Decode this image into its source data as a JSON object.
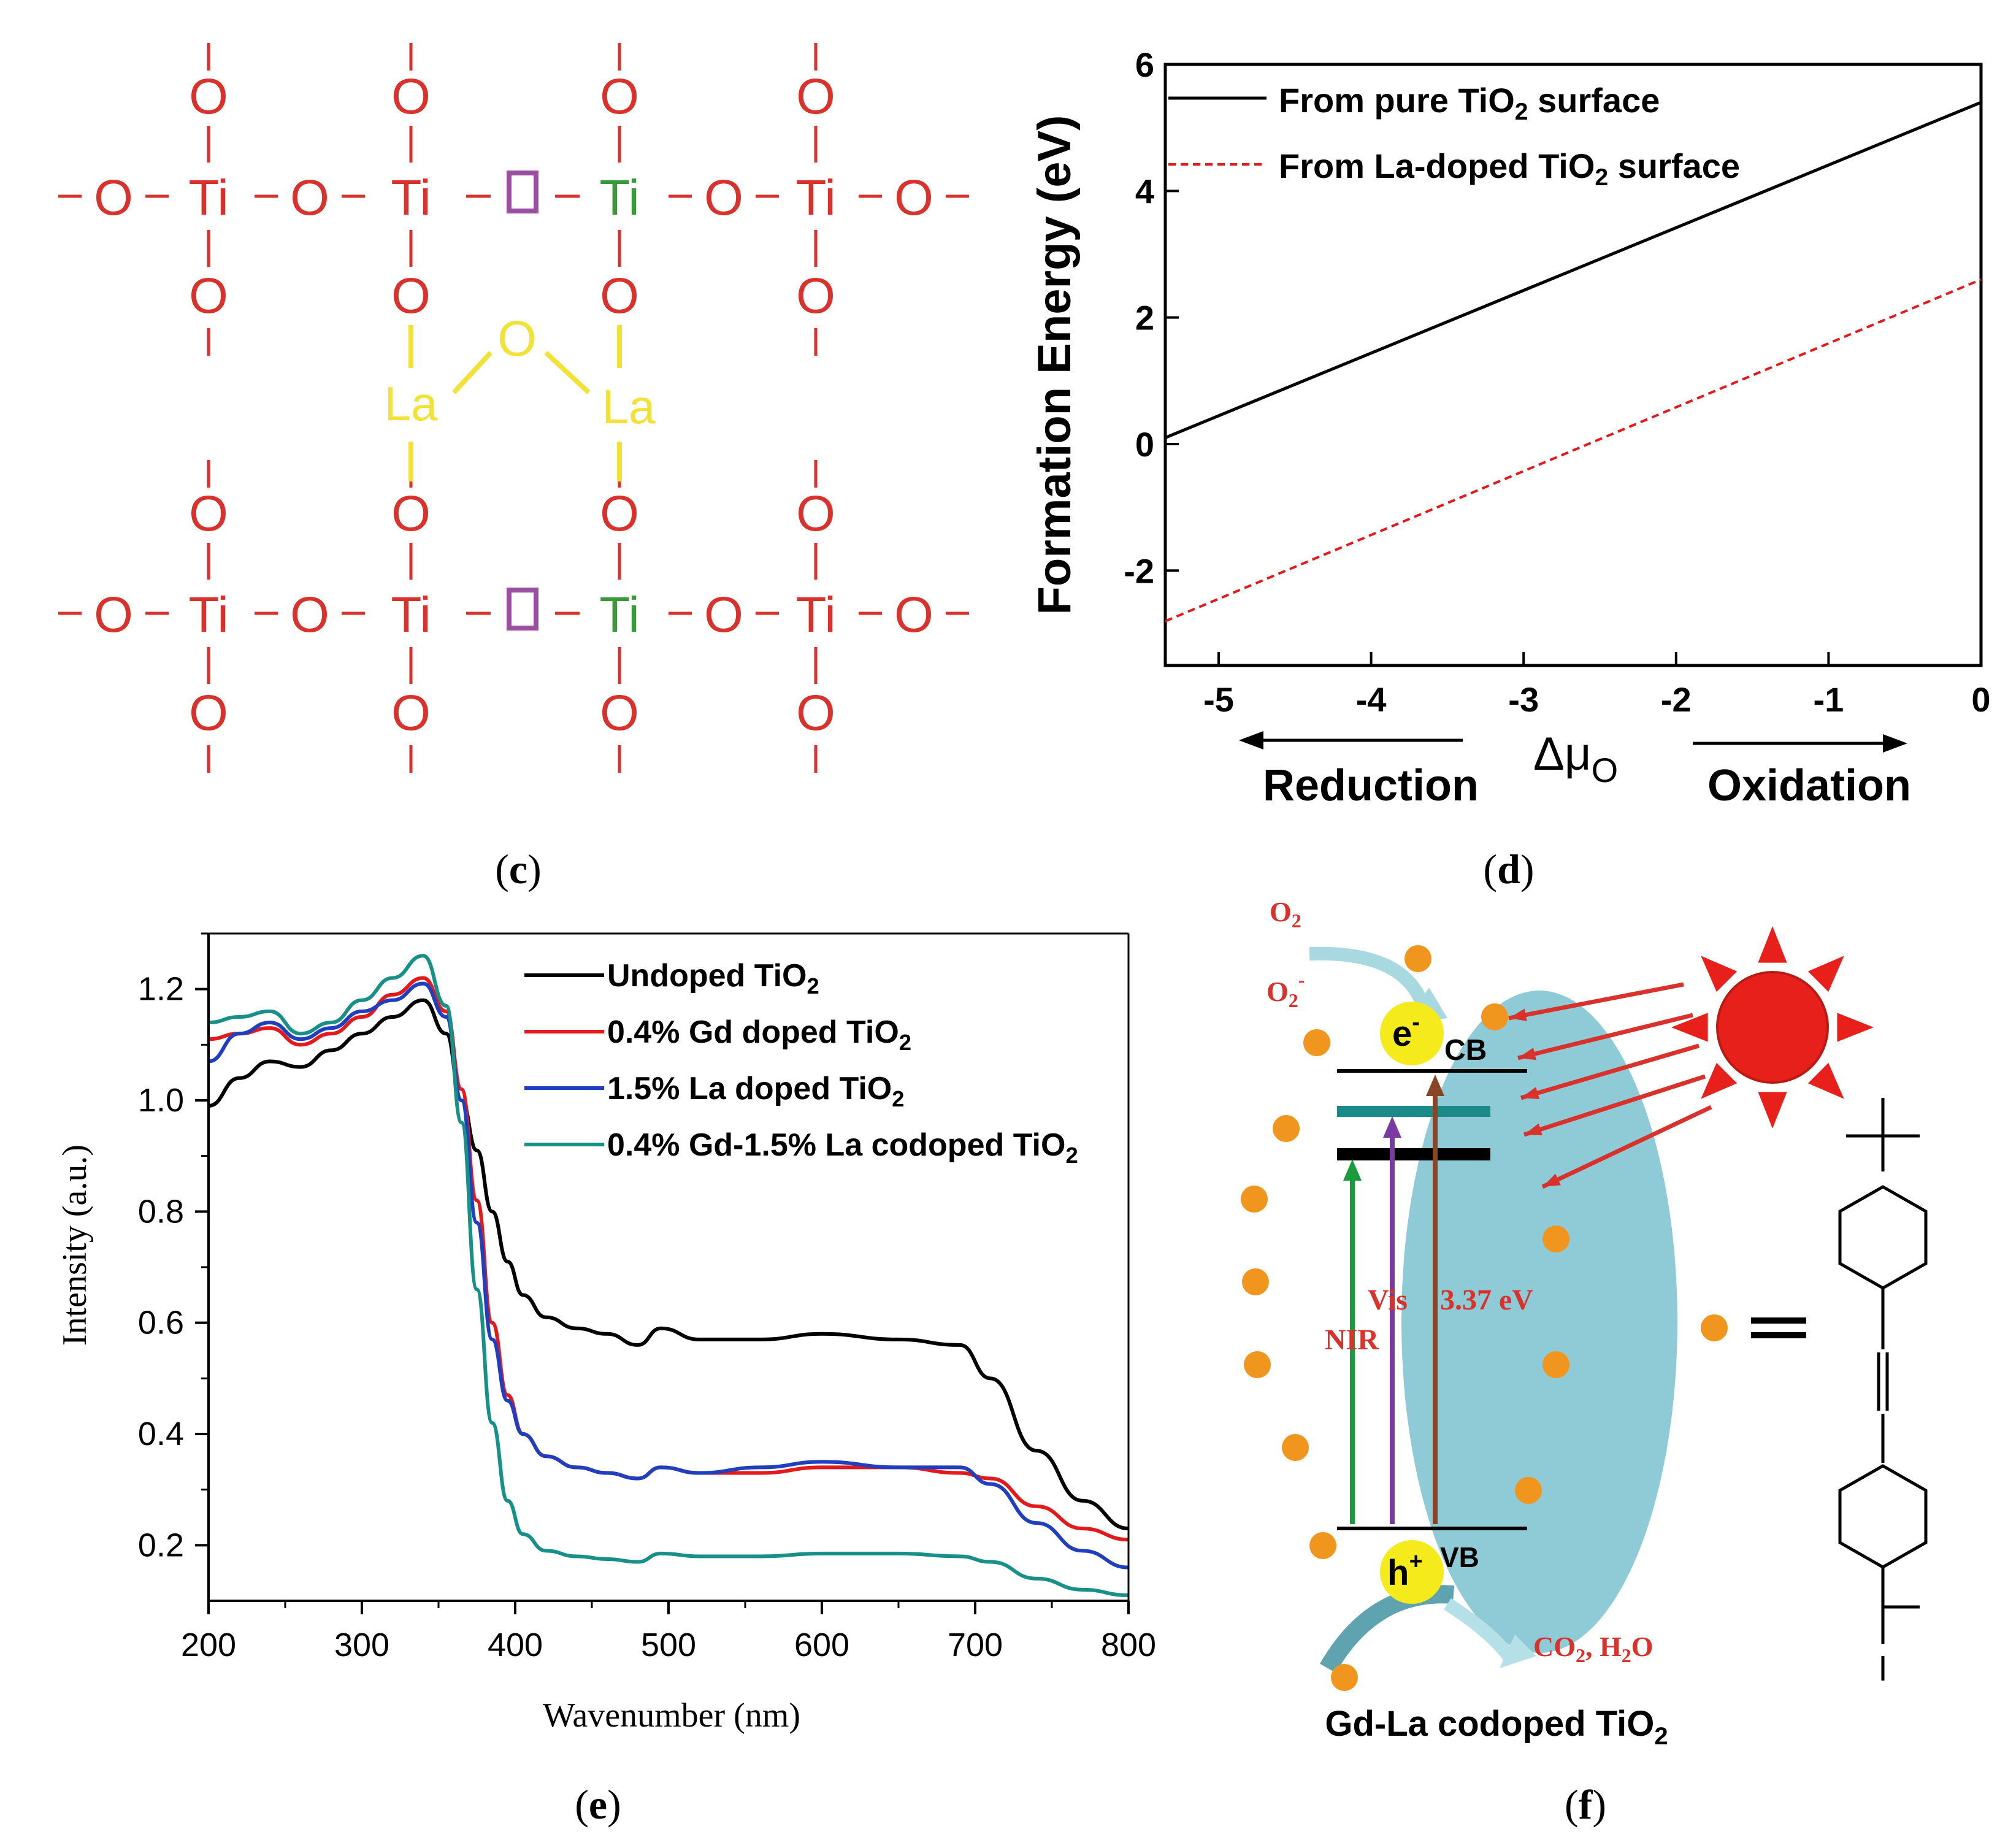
{
  "panels": {
    "c": {
      "label": "(c)",
      "letter": "c"
    },
    "d": {
      "label": "(d)",
      "letter": "d"
    },
    "e": {
      "label": "(e)",
      "letter": "e"
    },
    "f": {
      "label": "(f)",
      "letter": "f"
    }
  },
  "panel_c": {
    "atoms": {
      "ti": "Ti",
      "o": "O",
      "la": "La"
    },
    "bond": "—"
  },
  "panel_f": {
    "o2": "O2",
    "o2_radical": "O2-",
    "electron": "e-",
    "hole": "h+",
    "cb": "CB",
    "vb": "VB",
    "vis": "Vis",
    "nir": "NIR",
    "gap": "3.37 eV",
    "products": "CO2, H2O",
    "caption": "Gd-La codoped TiO2",
    "equals": "="
  },
  "colors": {
    "red": "#d9312b",
    "yellow": "#f2e237",
    "green": "#3a9a3a",
    "purple": "#9a4ea0",
    "black_series": "#000000",
    "red_series": "#e31a1c",
    "blue_series": "#1f3fbf",
    "teal_series": "#17908a",
    "particle": "#8fcbd6",
    "dye": "#f0961e",
    "sun": "#e8201b"
  },
  "chart_data": [
    {
      "type": "line",
      "panel": "d",
      "title": "",
      "xlabel": "Δμ",
      "xlabel_sub": "O",
      "ylabel": "Formation Energy (eV)",
      "xlim": [
        -5.35,
        0
      ],
      "ylim": [
        -3.5,
        6
      ],
      "xticks": [
        -5,
        -4,
        -3,
        -2,
        -1,
        0
      ],
      "yticks": [
        -2,
        0,
        2,
        4,
        6
      ],
      "legend_position": "top-right",
      "annotations": {
        "left": "Reduction",
        "right": "Oxidation"
      },
      "series": [
        {
          "name": "From pure TiO2 surface",
          "style": "solid",
          "color": "#000000",
          "x": [
            -5.35,
            0
          ],
          "y": [
            0.1,
            5.4
          ]
        },
        {
          "name": "From La-doped TiO2 surface",
          "style": "dashed",
          "color": "#e31a1c",
          "x": [
            -5.35,
            0
          ],
          "y": [
            -2.8,
            2.6
          ]
        }
      ]
    },
    {
      "type": "line",
      "panel": "e",
      "title": "",
      "xlabel": "Wavenumber (nm)",
      "ylabel": "Intensity (a.u.)",
      "xlim": [
        200,
        800
      ],
      "ylim": [
        0.1,
        1.3
      ],
      "xticks": [
        200,
        300,
        400,
        500,
        600,
        700,
        800
      ],
      "yticks": [
        0.2,
        0.4,
        0.6,
        0.8,
        1.0,
        1.2
      ],
      "ytick_labels": [
        "0.2",
        "0.4",
        "0.6",
        "0.8",
        "1.0",
        "1.2"
      ],
      "legend_position": "top-right",
      "x": [
        200,
        220,
        240,
        260,
        280,
        300,
        320,
        340,
        355,
        365,
        375,
        385,
        395,
        405,
        420,
        440,
        460,
        480,
        495,
        520,
        560,
        600,
        650,
        690,
        710,
        740,
        770,
        800
      ],
      "series": [
        {
          "name": "Undoped TiO2",
          "color": "#000000",
          "values": [
            0.99,
            1.04,
            1.07,
            1.06,
            1.09,
            1.12,
            1.15,
            1.18,
            1.12,
            1.0,
            0.91,
            0.8,
            0.71,
            0.65,
            0.61,
            0.59,
            0.58,
            0.56,
            0.59,
            0.57,
            0.57,
            0.58,
            0.57,
            0.56,
            0.5,
            0.37,
            0.28,
            0.23
          ]
        },
        {
          "name": "0.4% Gd doped TiO2",
          "color": "#e31a1c",
          "values": [
            1.11,
            1.12,
            1.13,
            1.1,
            1.12,
            1.15,
            1.19,
            1.22,
            1.16,
            1.02,
            0.82,
            0.6,
            0.47,
            0.4,
            0.36,
            0.34,
            0.33,
            0.32,
            0.34,
            0.33,
            0.33,
            0.34,
            0.34,
            0.33,
            0.32,
            0.27,
            0.23,
            0.21
          ]
        },
        {
          "name": "1.5% La doped TiO2",
          "color": "#1f3fbf",
          "values": [
            1.07,
            1.12,
            1.14,
            1.11,
            1.13,
            1.16,
            1.18,
            1.21,
            1.15,
            1.0,
            0.78,
            0.57,
            0.46,
            0.4,
            0.36,
            0.34,
            0.33,
            0.32,
            0.34,
            0.33,
            0.34,
            0.35,
            0.34,
            0.34,
            0.31,
            0.24,
            0.19,
            0.16
          ]
        },
        {
          "name": "0.4% Gd-1.5% La codoped TiO2",
          "color": "#17908a",
          "values": [
            1.14,
            1.15,
            1.16,
            1.12,
            1.14,
            1.18,
            1.22,
            1.26,
            1.17,
            0.96,
            0.66,
            0.42,
            0.28,
            0.22,
            0.19,
            0.18,
            0.175,
            0.17,
            0.185,
            0.18,
            0.18,
            0.185,
            0.185,
            0.18,
            0.17,
            0.14,
            0.12,
            0.11
          ]
        }
      ]
    }
  ]
}
